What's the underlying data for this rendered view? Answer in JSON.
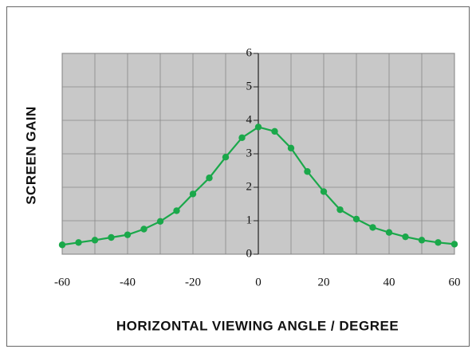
{
  "chart_data": {
    "type": "line",
    "xlabel": "HORIZONTAL VIEWING ANGLE / DEGREE",
    "ylabel": "SCREEN GAIN",
    "x": [
      -60,
      -55,
      -50,
      -45,
      -40,
      -35,
      -30,
      -25,
      -20,
      -15,
      -10,
      -5,
      0,
      5,
      10,
      15,
      20,
      25,
      30,
      35,
      40,
      45,
      50,
      55,
      60
    ],
    "series": [
      {
        "color": "#1aa84a",
        "values": [
          0.28,
          0.35,
          0.42,
          0.5,
          0.58,
          0.75,
          0.98,
          1.3,
          1.8,
          2.28,
          2.9,
          3.48,
          3.8,
          3.67,
          3.17,
          2.47,
          1.87,
          1.33,
          1.05,
          0.8,
          0.65,
          0.52,
          0.42,
          0.35,
          0.3
        ]
      }
    ],
    "xlim": [
      -60,
      60
    ],
    "ylim": [
      0,
      6
    ],
    "xticks": [
      -60,
      -40,
      -20,
      0,
      20,
      40,
      60
    ],
    "xminor": [
      -50,
      -30,
      -10,
      10,
      30,
      50
    ],
    "yticks": [
      0,
      1,
      2,
      3,
      4,
      5,
      6
    ],
    "grid": true
  }
}
